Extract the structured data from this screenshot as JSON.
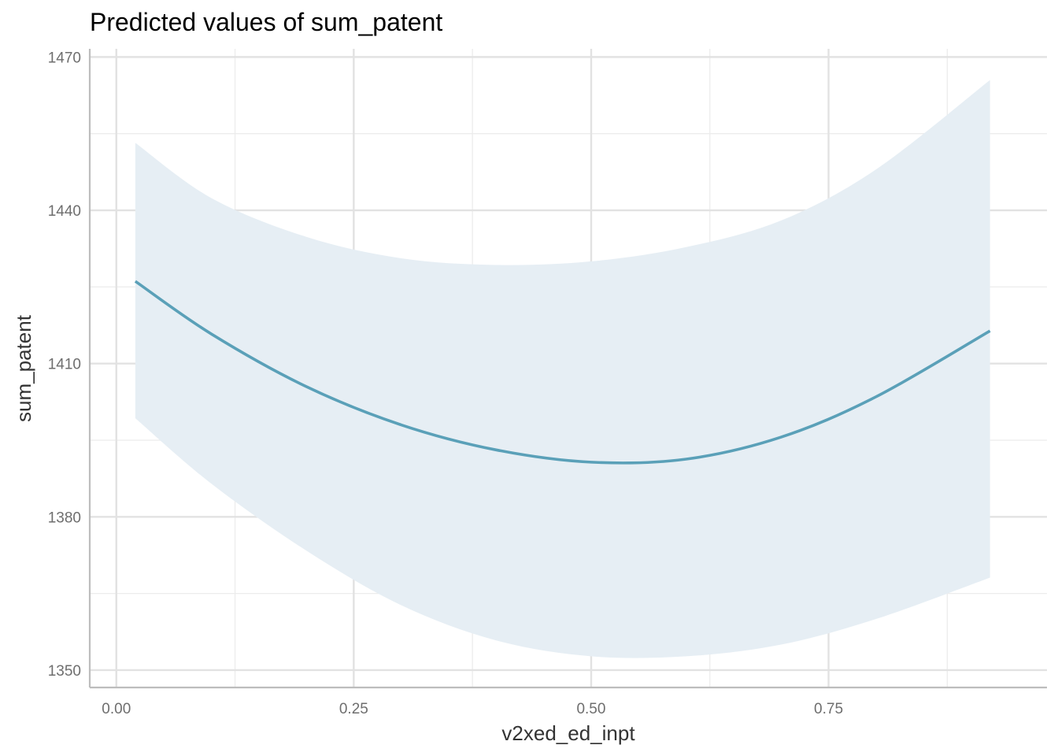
{
  "chart_data": {
    "type": "line",
    "title": "Predicted values of sum_patent",
    "xlabel": "v2xed_ed_inpt",
    "ylabel": "sum_patent",
    "xlim": [
      -0.028,
      0.98
    ],
    "ylim": [
      1346.6,
      1471.6
    ],
    "x_ticks": [
      0.0,
      0.25,
      0.5,
      0.75
    ],
    "x_tick_labels": [
      "0.00",
      "0.25",
      "0.50",
      "0.75"
    ],
    "y_ticks": [
      1350,
      1380,
      1410,
      1440,
      1470
    ],
    "y_tick_labels": [
      "1350",
      "1380",
      "1410",
      "1440",
      "1470"
    ],
    "grid": true,
    "legend": "none",
    "colors": {
      "line": "#5aa0b8",
      "band": "#e6eef4",
      "grid_major": "#e2e2e2",
      "grid_minor": "#ececec",
      "axis": "#bdbdbd"
    },
    "series": [
      {
        "x": [
          0.02,
          0.1,
          0.2,
          0.3,
          0.4,
          0.5,
          0.6,
          0.7,
          0.8,
          0.92
        ],
        "y": [
          1426.1,
          1415.8,
          1405.5,
          1398.0,
          1393.1,
          1390.7,
          1391.3,
          1395.6,
          1403.5,
          1416.4
        ],
        "ci_low": [
          1399.3,
          1386.5,
          1373.4,
          1362.7,
          1355.8,
          1352.7,
          1352.7,
          1355.0,
          1360.0,
          1368.1
        ],
        "ci_high": [
          1453.2,
          1442.4,
          1434.8,
          1430.6,
          1429.3,
          1430.0,
          1432.8,
          1438.0,
          1448.0,
          1465.5
        ]
      }
    ]
  }
}
